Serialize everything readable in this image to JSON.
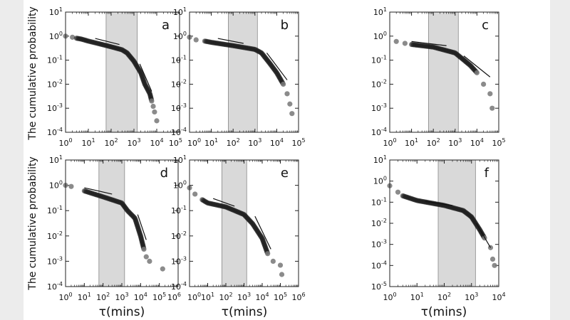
{
  "figure": {
    "ylabel": "The cumulative probability",
    "xlabel": "τ(mins)"
  },
  "chart_data": [
    {
      "type": "scatter",
      "panel_label": "a",
      "xscale": "log",
      "yscale": "log",
      "xlim": [
        1,
        100000
      ],
      "ylim": [
        0.0001,
        10
      ],
      "shaded_range": [
        60,
        1400
      ],
      "points": [
        [
          1,
          1
        ],
        [
          2,
          0.9
        ],
        [
          3,
          0.82
        ],
        [
          5,
          0.75
        ],
        [
          10,
          0.62
        ],
        [
          30,
          0.48
        ],
        [
          100,
          0.36
        ],
        [
          300,
          0.27
        ],
        [
          500,
          0.2
        ],
        [
          1000,
          0.09
        ],
        [
          2000,
          0.03
        ],
        [
          3000,
          0.01
        ],
        [
          5000,
          0.004
        ],
        [
          6000,
          0.002
        ],
        [
          7000,
          0.0012
        ],
        [
          8000,
          0.0007
        ],
        [
          10000,
          0.0003
        ]
      ],
      "fit_lines": [
        [
          [
            20,
            0.8
          ],
          [
            230,
            0.45
          ]
        ],
        [
          [
            1800,
            0.07
          ],
          [
            6000,
            0.005
          ]
        ]
      ]
    },
    {
      "type": "scatter",
      "panel_label": "b",
      "xscale": "log",
      "yscale": "log",
      "xlim": [
        1,
        100000
      ],
      "ylim": [
        0.0001,
        10
      ],
      "shaded_range": [
        60,
        1300
      ],
      "points": [
        [
          1,
          0.9
        ],
        [
          2,
          0.7
        ],
        [
          5,
          0.62
        ],
        [
          10,
          0.55
        ],
        [
          100,
          0.4
        ],
        [
          1000,
          0.28
        ],
        [
          2000,
          0.2
        ],
        [
          5000,
          0.07
        ],
        [
          10000,
          0.03
        ],
        [
          20000,
          0.01
        ],
        [
          30000,
          0.004
        ],
        [
          40000,
          0.0015
        ],
        [
          50000,
          0.0006
        ]
      ],
      "fit_lines": [
        [
          [
            20,
            0.8
          ],
          [
            300,
            0.5
          ]
        ],
        [
          [
            3500,
            0.2
          ],
          [
            30000,
            0.015
          ]
        ]
      ]
    },
    {
      "type": "scatter",
      "panel_label": "c",
      "xscale": "log",
      "yscale": "log",
      "xlim": [
        1,
        100000
      ],
      "ylim": [
        0.0001,
        10
      ],
      "shaded_range": [
        60,
        1400
      ],
      "points": [
        [
          2,
          0.6
        ],
        [
          5,
          0.5
        ],
        [
          10,
          0.45
        ],
        [
          100,
          0.35
        ],
        [
          1000,
          0.2
        ],
        [
          2000,
          0.12
        ],
        [
          5000,
          0.06
        ],
        [
          10000,
          0.03
        ],
        [
          20000,
          0.01
        ],
        [
          40000,
          0.004
        ],
        [
          50000,
          0.001
        ]
      ],
      "fit_lines": [
        [
          [
            10,
            0.6
          ],
          [
            400,
            0.4
          ]
        ],
        [
          [
            2500,
            0.15
          ],
          [
            40000,
            0.02
          ]
        ]
      ]
    },
    {
      "type": "scatter",
      "panel_label": "d",
      "xscale": "log",
      "yscale": "log",
      "xlim": [
        1,
        1000000
      ],
      "ylim": [
        0.0001,
        10
      ],
      "shaded_range": [
        60,
        1400
      ],
      "points": [
        [
          1,
          1
        ],
        [
          2,
          0.9
        ],
        [
          10,
          0.6
        ],
        [
          100,
          0.35
        ],
        [
          1000,
          0.2
        ],
        [
          2000,
          0.1
        ],
        [
          5000,
          0.05
        ],
        [
          10000,
          0.01
        ],
        [
          15000,
          0.003
        ],
        [
          20000,
          0.0015
        ],
        [
          30000,
          0.001
        ],
        [
          150000,
          0.0005
        ]
      ],
      "fit_lines": [
        [
          [
            10,
            0.8
          ],
          [
            300,
            0.45
          ]
        ],
        [
          [
            7000,
            0.07
          ],
          [
            20000,
            0.007
          ]
        ]
      ]
    },
    {
      "type": "scatter",
      "panel_label": "e",
      "xscale": "log",
      "yscale": "log",
      "xlim": [
        1,
        1000000
      ],
      "ylim": [
        0.0001,
        10
      ],
      "shaded_range": [
        60,
        1400
      ],
      "points": [
        [
          1,
          0.8
        ],
        [
          2,
          0.45
        ],
        [
          5,
          0.27
        ],
        [
          10,
          0.2
        ],
        [
          100,
          0.14
        ],
        [
          1000,
          0.07
        ],
        [
          3000,
          0.03
        ],
        [
          10000,
          0.008
        ],
        [
          20000,
          0.002
        ],
        [
          40000,
          0.001
        ],
        [
          100000,
          0.0007
        ],
        [
          120000,
          0.0003
        ]
      ],
      "fit_lines": [
        [
          [
            20,
            0.3
          ],
          [
            300,
            0.15
          ]
        ],
        [
          [
            4000,
            0.06
          ],
          [
            30000,
            0.003
          ]
        ]
      ]
    },
    {
      "type": "scatter",
      "panel_label": "f",
      "xscale": "log",
      "yscale": "log",
      "xlim": [
        1,
        10000
      ],
      "ylim": [
        1e-05,
        10
      ],
      "shaded_range": [
        60,
        1400
      ],
      "points": [
        [
          1,
          0.6
        ],
        [
          2,
          0.3
        ],
        [
          3,
          0.2
        ],
        [
          10,
          0.12
        ],
        [
          100,
          0.07
        ],
        [
          500,
          0.04
        ],
        [
          1000,
          0.02
        ],
        [
          2000,
          0.005
        ],
        [
          3000,
          0.002
        ],
        [
          5000,
          0.0007
        ],
        [
          6000,
          0.0002
        ],
        [
          7000,
          0.0001
        ]
      ],
      "fit_lines": [
        [
          [
            20,
            0.11
          ],
          [
            200,
            0.07
          ]
        ],
        [
          [
            1500,
            0.01
          ],
          [
            5000,
            0.0007
          ]
        ]
      ]
    }
  ],
  "colors": {
    "shade": "#d9d9d9",
    "points": "#1e1e1e",
    "outlier_points": "#777777",
    "axis": "#222222"
  }
}
